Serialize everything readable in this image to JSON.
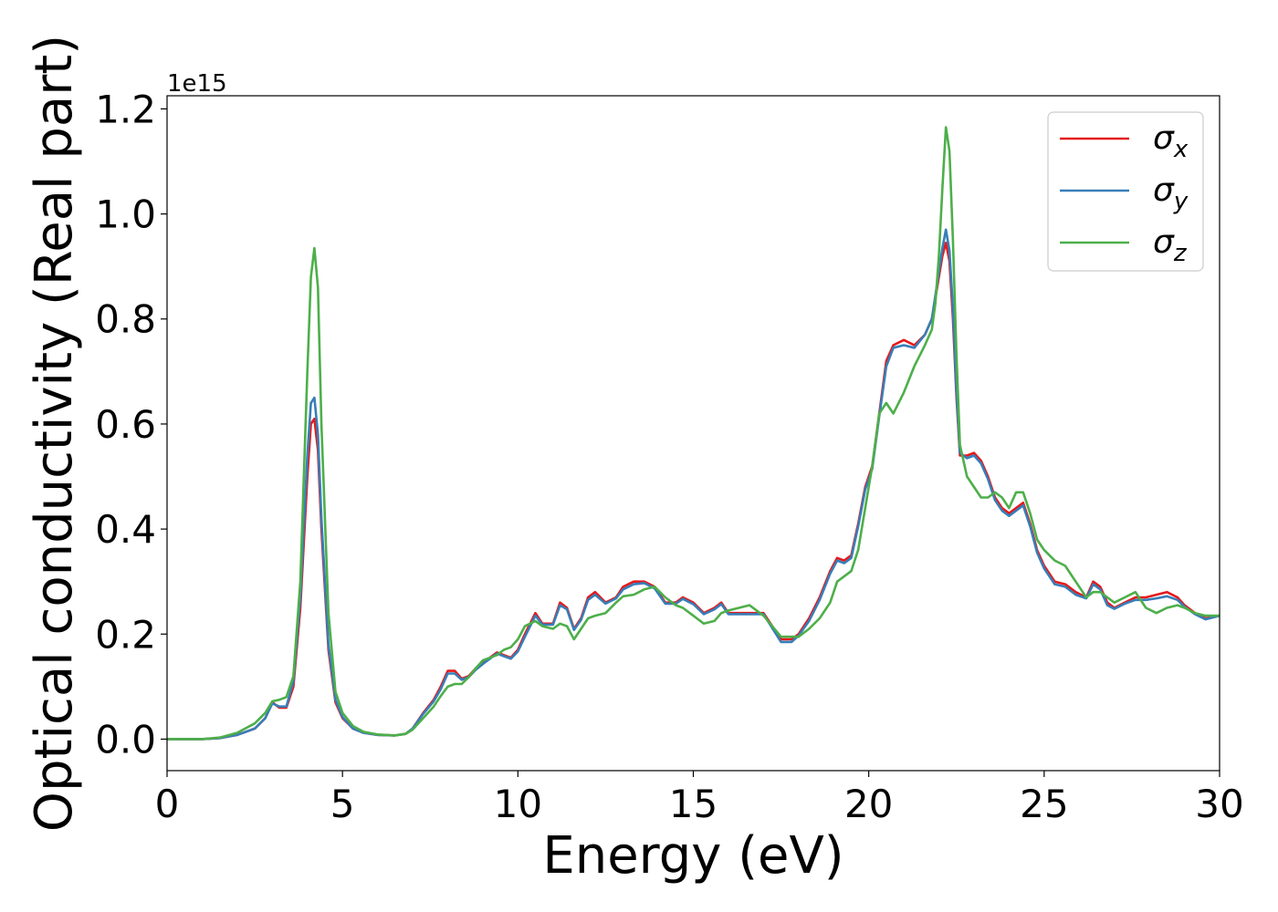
{
  "chart_data": {
    "type": "line",
    "xlabel": "Energy (eV)",
    "ylabel": "Optical conductivity (Real part)",
    "offset_label": "1e15",
    "xlim": [
      0,
      30
    ],
    "ylim": [
      -0.06,
      1.225
    ],
    "xticks": [
      0,
      5,
      10,
      15,
      20,
      25,
      30
    ],
    "xtick_labels": [
      "0",
      "5",
      "10",
      "15",
      "20",
      "25",
      "30"
    ],
    "yticks": [
      0.0,
      0.2,
      0.4,
      0.6,
      0.8,
      1.0,
      1.2
    ],
    "ytick_labels": [
      "0.0",
      "0.2",
      "0.4",
      "0.6",
      "0.8",
      "1.0",
      "1.2"
    ],
    "grid": false,
    "legend_position": "upper right",
    "series": [
      {
        "name": "σx",
        "name_base": "σ",
        "name_sub": "x",
        "color": "#e41a1c",
        "x": [
          0,
          1,
          1.5,
          2,
          2.5,
          2.8,
          3,
          3.2,
          3.4,
          3.6,
          3.8,
          4,
          4.1,
          4.2,
          4.3,
          4.4,
          4.6,
          4.8,
          5,
          5.3,
          5.6,
          6,
          6.5,
          6.8,
          7,
          7.3,
          7.6,
          7.8,
          8,
          8.2,
          8.4,
          8.6,
          8.8,
          9,
          9.2,
          9.4,
          9.6,
          9.8,
          10,
          10.2,
          10.5,
          10.7,
          11,
          11.2,
          11.4,
          11.6,
          11.8,
          12,
          12.2,
          12.5,
          12.8,
          13,
          13.3,
          13.6,
          13.9,
          14.2,
          14.5,
          14.7,
          15,
          15.3,
          15.6,
          15.8,
          16,
          16.3,
          16.6,
          17,
          17.5,
          17.8,
          18,
          18.3,
          18.6,
          18.9,
          19.1,
          19.3,
          19.5,
          19.7,
          19.9,
          20.1,
          20.3,
          20.5,
          20.7,
          21,
          21.3,
          21.6,
          21.8,
          21.9,
          22,
          22.1,
          22.2,
          22.3,
          22.4,
          22.5,
          22.6,
          22.8,
          23,
          23.2,
          23.4,
          23.6,
          23.8,
          24,
          24.2,
          24.4,
          24.6,
          24.8,
          25,
          25.3,
          25.6,
          25.9,
          26.2,
          26.4,
          26.6,
          26.8,
          27,
          27.3,
          27.6,
          27.9,
          28.2,
          28.5,
          28.8,
          29,
          29.3,
          29.6,
          30
        ],
        "y": [
          0.0,
          0.0,
          0.002,
          0.008,
          0.02,
          0.04,
          0.07,
          0.06,
          0.06,
          0.1,
          0.25,
          0.5,
          0.6,
          0.61,
          0.55,
          0.4,
          0.17,
          0.07,
          0.04,
          0.02,
          0.012,
          0.008,
          0.007,
          0.01,
          0.02,
          0.05,
          0.075,
          0.1,
          0.13,
          0.13,
          0.115,
          0.12,
          0.135,
          0.145,
          0.155,
          0.165,
          0.16,
          0.155,
          0.17,
          0.2,
          0.24,
          0.22,
          0.22,
          0.26,
          0.25,
          0.21,
          0.23,
          0.27,
          0.28,
          0.26,
          0.27,
          0.29,
          0.3,
          0.3,
          0.29,
          0.26,
          0.26,
          0.27,
          0.26,
          0.24,
          0.25,
          0.26,
          0.24,
          0.24,
          0.24,
          0.24,
          0.19,
          0.19,
          0.2,
          0.23,
          0.27,
          0.32,
          0.345,
          0.34,
          0.35,
          0.41,
          0.48,
          0.52,
          0.62,
          0.72,
          0.75,
          0.76,
          0.75,
          0.77,
          0.8,
          0.84,
          0.88,
          0.92,
          0.945,
          0.91,
          0.8,
          0.65,
          0.54,
          0.54,
          0.545,
          0.53,
          0.5,
          0.46,
          0.44,
          0.43,
          0.44,
          0.45,
          0.41,
          0.36,
          0.33,
          0.3,
          0.295,
          0.28,
          0.27,
          0.3,
          0.29,
          0.26,
          0.25,
          0.26,
          0.27,
          0.27,
          0.275,
          0.28,
          0.27,
          0.255,
          0.24,
          0.23,
          0.235
        ]
      },
      {
        "name": "σy",
        "name_base": "σ",
        "name_sub": "y",
        "color": "#377eb8",
        "x": [
          0,
          1,
          1.5,
          2,
          2.5,
          2.8,
          3,
          3.2,
          3.4,
          3.6,
          3.8,
          4,
          4.1,
          4.2,
          4.3,
          4.4,
          4.6,
          4.8,
          5,
          5.3,
          5.6,
          6,
          6.5,
          6.8,
          7,
          7.3,
          7.6,
          7.8,
          8,
          8.2,
          8.4,
          8.6,
          8.8,
          9,
          9.2,
          9.4,
          9.6,
          9.8,
          10,
          10.2,
          10.5,
          10.7,
          11,
          11.2,
          11.4,
          11.6,
          11.8,
          12,
          12.2,
          12.5,
          12.8,
          13,
          13.3,
          13.6,
          13.9,
          14.2,
          14.5,
          14.7,
          15,
          15.3,
          15.6,
          15.8,
          16,
          16.3,
          16.6,
          17,
          17.5,
          17.8,
          18,
          18.3,
          18.6,
          18.9,
          19.1,
          19.3,
          19.5,
          19.7,
          19.9,
          20.1,
          20.3,
          20.5,
          20.7,
          21,
          21.3,
          21.6,
          21.8,
          21.9,
          22,
          22.1,
          22.2,
          22.3,
          22.4,
          22.5,
          22.6,
          22.8,
          23,
          23.2,
          23.4,
          23.6,
          23.8,
          24,
          24.2,
          24.4,
          24.6,
          24.8,
          25,
          25.3,
          25.6,
          25.9,
          26.2,
          26.4,
          26.6,
          26.8,
          27,
          27.3,
          27.6,
          27.9,
          28.2,
          28.5,
          28.8,
          29,
          29.3,
          29.6,
          30
        ],
        "y": [
          0.0,
          0.0,
          0.002,
          0.008,
          0.02,
          0.04,
          0.068,
          0.062,
          0.062,
          0.11,
          0.27,
          0.54,
          0.64,
          0.65,
          0.58,
          0.42,
          0.18,
          0.075,
          0.042,
          0.02,
          0.012,
          0.008,
          0.007,
          0.01,
          0.02,
          0.048,
          0.072,
          0.095,
          0.125,
          0.125,
          0.113,
          0.118,
          0.132,
          0.143,
          0.153,
          0.163,
          0.158,
          0.153,
          0.167,
          0.195,
          0.235,
          0.218,
          0.218,
          0.255,
          0.247,
          0.208,
          0.227,
          0.265,
          0.275,
          0.258,
          0.268,
          0.285,
          0.295,
          0.297,
          0.287,
          0.258,
          0.258,
          0.267,
          0.257,
          0.238,
          0.247,
          0.257,
          0.238,
          0.238,
          0.238,
          0.238,
          0.185,
          0.185,
          0.197,
          0.225,
          0.265,
          0.315,
          0.34,
          0.335,
          0.345,
          0.405,
          0.475,
          0.515,
          0.615,
          0.71,
          0.745,
          0.75,
          0.745,
          0.77,
          0.8,
          0.845,
          0.89,
          0.935,
          0.97,
          0.93,
          0.82,
          0.66,
          0.545,
          0.535,
          0.54,
          0.525,
          0.495,
          0.455,
          0.435,
          0.425,
          0.435,
          0.445,
          0.405,
          0.355,
          0.325,
          0.295,
          0.29,
          0.275,
          0.268,
          0.295,
          0.285,
          0.255,
          0.248,
          0.258,
          0.265,
          0.265,
          0.268,
          0.272,
          0.265,
          0.252,
          0.238,
          0.228,
          0.235
        ]
      },
      {
        "name": "σz",
        "name_base": "σ",
        "name_sub": "z",
        "color": "#4daf4a",
        "x": [
          0,
          1,
          1.5,
          2,
          2.5,
          2.8,
          3,
          3.2,
          3.4,
          3.6,
          3.8,
          4,
          4.1,
          4.2,
          4.3,
          4.4,
          4.6,
          4.8,
          5,
          5.3,
          5.6,
          6,
          6.5,
          6.8,
          7,
          7.3,
          7.6,
          7.8,
          8,
          8.2,
          8.4,
          8.6,
          8.8,
          9,
          9.2,
          9.4,
          9.6,
          9.8,
          10,
          10.2,
          10.5,
          10.7,
          11,
          11.2,
          11.4,
          11.6,
          11.8,
          12,
          12.2,
          12.5,
          12.8,
          13,
          13.3,
          13.6,
          13.9,
          14.2,
          14.5,
          14.7,
          15,
          15.3,
          15.6,
          15.8,
          16,
          16.3,
          16.6,
          17,
          17.5,
          17.8,
          18,
          18.3,
          18.6,
          18.9,
          19.1,
          19.3,
          19.5,
          19.7,
          19.9,
          20.1,
          20.3,
          20.5,
          20.7,
          21,
          21.3,
          21.6,
          21.8,
          21.9,
          22,
          22.1,
          22.2,
          22.3,
          22.4,
          22.5,
          22.6,
          22.8,
          23,
          23.2,
          23.4,
          23.6,
          23.8,
          24,
          24.2,
          24.4,
          24.6,
          24.8,
          25,
          25.3,
          25.6,
          25.9,
          26.2,
          26.4,
          26.6,
          26.8,
          27,
          27.3,
          27.6,
          27.9,
          28.2,
          28.5,
          28.8,
          29,
          29.3,
          29.6,
          30
        ],
        "y": [
          0.0,
          0.0,
          0.003,
          0.012,
          0.03,
          0.05,
          0.072,
          0.075,
          0.08,
          0.12,
          0.3,
          0.7,
          0.88,
          0.935,
          0.86,
          0.6,
          0.24,
          0.09,
          0.05,
          0.025,
          0.014,
          0.009,
          0.007,
          0.01,
          0.018,
          0.04,
          0.062,
          0.082,
          0.1,
          0.105,
          0.105,
          0.118,
          0.135,
          0.15,
          0.155,
          0.16,
          0.17,
          0.175,
          0.19,
          0.215,
          0.225,
          0.215,
          0.21,
          0.22,
          0.215,
          0.19,
          0.21,
          0.23,
          0.235,
          0.24,
          0.26,
          0.272,
          0.275,
          0.285,
          0.29,
          0.27,
          0.255,
          0.25,
          0.235,
          0.22,
          0.225,
          0.24,
          0.245,
          0.25,
          0.255,
          0.235,
          0.195,
          0.195,
          0.195,
          0.21,
          0.23,
          0.26,
          0.3,
          0.31,
          0.32,
          0.36,
          0.44,
          0.52,
          0.62,
          0.64,
          0.62,
          0.66,
          0.71,
          0.75,
          0.78,
          0.83,
          0.92,
          1.05,
          1.165,
          1.12,
          0.95,
          0.73,
          0.56,
          0.5,
          0.48,
          0.46,
          0.46,
          0.47,
          0.46,
          0.44,
          0.47,
          0.47,
          0.43,
          0.38,
          0.36,
          0.34,
          0.33,
          0.3,
          0.27,
          0.28,
          0.28,
          0.27,
          0.26,
          0.27,
          0.28,
          0.25,
          0.24,
          0.25,
          0.255,
          0.25,
          0.24,
          0.235,
          0.235
        ]
      }
    ]
  }
}
